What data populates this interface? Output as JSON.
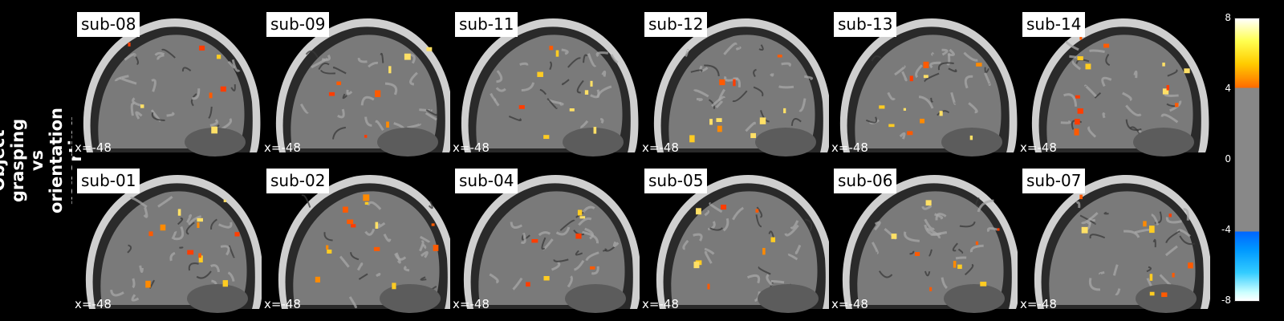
{
  "side_title": "Object grasping vs\norientation reporting",
  "coordinate": "x=-48",
  "rows": [
    {
      "panels": [
        {
          "label": "sub-08"
        },
        {
          "label": "sub-09"
        },
        {
          "label": "sub-11"
        },
        {
          "label": "sub-12"
        },
        {
          "label": "sub-13"
        },
        {
          "label": "sub-14"
        }
      ]
    },
    {
      "panels": [
        {
          "label": "sub-01"
        },
        {
          "label": "sub-02"
        },
        {
          "label": "sub-04"
        },
        {
          "label": "sub-05"
        },
        {
          "label": "sub-06"
        },
        {
          "label": "sub-07"
        }
      ]
    }
  ],
  "colorbar": {
    "ticks": [
      "8",
      "4",
      "0",
      "-4",
      "-8"
    ],
    "positive_color": "#ff7700",
    "negative_color": "#1aa3ff",
    "neutral_color": "#888888"
  }
}
